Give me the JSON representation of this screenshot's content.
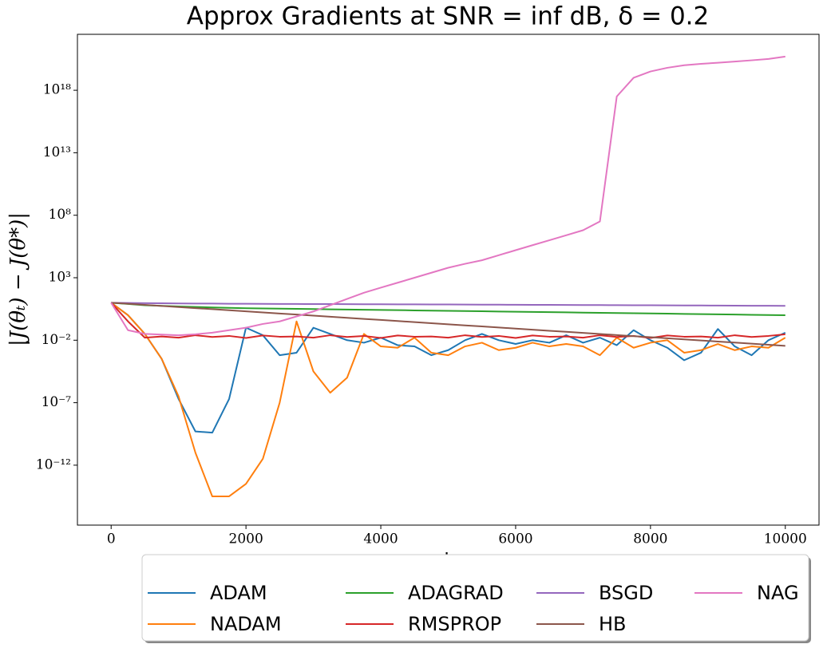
{
  "chart_data": {
    "type": "line",
    "title": "Approx Gradients at SNR = inf dB, δ = 0.2",
    "x_label": "t",
    "y_label": "|J(θₜ) − J(θ*)|",
    "log_y": true,
    "grid": false,
    "legend_loc": "below",
    "legend_columns": 4,
    "xlim": [
      -500,
      10500
    ],
    "xticks": [
      0,
      2000,
      4000,
      6000,
      8000,
      10000
    ],
    "ylim": [
      1.6e-17,
      3e+22
    ],
    "yticks": [
      {
        "value": 1e-12,
        "label": "10⁻¹²"
      },
      {
        "value": 1e-07,
        "label": "10⁻⁷"
      },
      {
        "value": 0.01,
        "label": "10⁻²"
      },
      {
        "value": 1000.0,
        "label": "10³"
      },
      {
        "value": 100000000.0,
        "label": "10⁸"
      },
      {
        "value": 10000000000000.0,
        "label": "10¹³"
      },
      {
        "value": 1e+18,
        "label": "10¹⁸"
      }
    ],
    "x": [
      0,
      250,
      500,
      750,
      1000,
      1250,
      1500,
      1750,
      2000,
      2250,
      2500,
      2750,
      3000,
      3250,
      3500,
      3750,
      4000,
      4250,
      4500,
      4750,
      5000,
      5250,
      5500,
      5750,
      6000,
      6250,
      6500,
      6750,
      7000,
      7250,
      7500,
      7750,
      8000,
      8250,
      8500,
      8750,
      9000,
      9250,
      9500,
      9750,
      10000
    ],
    "series": [
      {
        "name": "ADAM",
        "color": "#1f77b4",
        "values": [
          10,
          1,
          0.032,
          0.00032,
          2e-07,
          5e-10,
          4e-10,
          2e-07,
          0.1,
          0.025,
          0.00063,
          0.001,
          0.1,
          0.032,
          0.01,
          0.0063,
          0.016,
          0.004,
          0.0032,
          0.00063,
          0.0016,
          0.01,
          0.032,
          0.01,
          0.005,
          0.01,
          0.0063,
          0.025,
          0.0063,
          0.016,
          0.004,
          0.063,
          0.01,
          0.0025,
          0.00025,
          0.001,
          0.079,
          0.0032,
          0.00063,
          0.01,
          0.04
        ]
      },
      {
        "name": "NADAM",
        "color": "#ff7f0e",
        "values": [
          10,
          1,
          0.032,
          0.00032,
          3.2e-07,
          1e-11,
          3.2e-15,
          3.2e-15,
          3.2e-14,
          3.2e-12,
          1e-07,
          0.32,
          3.2e-05,
          6.3e-07,
          1e-05,
          0.032,
          0.0032,
          0.0025,
          0.016,
          0.001,
          0.00063,
          0.0032,
          0.0063,
          0.0016,
          0.0025,
          0.0063,
          0.0032,
          0.005,
          0.0032,
          0.00063,
          0.016,
          0.0025,
          0.0063,
          0.01,
          0.001,
          0.0016,
          0.005,
          0.0016,
          0.0032,
          0.0025,
          0.016
        ]
      },
      {
        "name": "ADAGRAD",
        "color": "#2ca02c",
        "values": [
          10,
          7.9,
          6.3,
          5.6,
          5,
          4.6,
          4.2,
          3.9,
          3.6,
          3.49,
          3.35,
          3.22,
          3.09,
          2.97,
          2.85,
          2.74,
          2.63,
          2.53,
          2.43,
          2.33,
          2.24,
          2.15,
          2.07,
          1.98,
          1.91,
          1.83,
          1.76,
          1.69,
          1.62,
          1.56,
          1.5,
          1.44,
          1.38,
          1.33,
          1.27,
          1.22,
          1.17,
          1.13,
          1.08,
          1.04,
          1.0
        ]
      },
      {
        "name": "RMSPROP",
        "color": "#d62728",
        "values": [
          10,
          0.32,
          0.016,
          0.02,
          0.016,
          0.025,
          0.018,
          0.022,
          0.015,
          0.024,
          0.019,
          0.02,
          0.016,
          0.025,
          0.018,
          0.022,
          0.015,
          0.024,
          0.019,
          0.02,
          0.016,
          0.025,
          0.018,
          0.022,
          0.015,
          0.024,
          0.019,
          0.02,
          0.016,
          0.025,
          0.018,
          0.022,
          0.015,
          0.024,
          0.019,
          0.02,
          0.016,
          0.025,
          0.018,
          0.022,
          0.03
        ]
      },
      {
        "name": "BSGD",
        "color": "#9467bd",
        "values": [
          10,
          9.6,
          9.3,
          9.0,
          8.8,
          8.6,
          8.5,
          8.3,
          8.2,
          8.1,
          8.0,
          7.92,
          7.84,
          7.76,
          7.68,
          7.6,
          7.52,
          7.44,
          7.36,
          7.28,
          7.2,
          7.12,
          7.04,
          6.96,
          6.88,
          6.8,
          6.72,
          6.64,
          6.56,
          6.48,
          6.4,
          6.32,
          6.24,
          6.16,
          6.08,
          6.0,
          5.92,
          5.84,
          5.76,
          5.68,
          5.6
        ]
      },
      {
        "name": "HB",
        "color": "#8c564b",
        "values": [
          10,
          8.2,
          6.72,
          5.51,
          4.52,
          3.7,
          3.04,
          2.49,
          2.04,
          1.67,
          1.37,
          1.13,
          0.92,
          0.756,
          0.62,
          0.508,
          0.417,
          0.342,
          0.28,
          0.23,
          0.188,
          0.154,
          0.127,
          0.104,
          0.0851,
          0.0698,
          0.0572,
          0.0469,
          0.0385,
          0.0315,
          0.0259,
          0.0212,
          0.0174,
          0.0142,
          0.0117,
          0.00958,
          0.00785,
          0.00644,
          0.00528,
          0.00433,
          0.00355
        ]
      },
      {
        "name": "NAG",
        "color": "#e377c2",
        "values": [
          10,
          0.063,
          0.032,
          0.028,
          0.025,
          0.03,
          0.04,
          0.063,
          0.1,
          0.2,
          0.32,
          0.8,
          2,
          6.3,
          20,
          63,
          160,
          400,
          1000,
          2500,
          6300,
          13000,
          25000,
          63000,
          160000,
          400000,
          1000000,
          2500000,
          6300000,
          32000000,
          3.2e+17,
          1e+19,
          3.2e+19,
          6.3e+19,
          1e+20,
          1.3e+20,
          1.6e+20,
          2e+20,
          2.5e+20,
          3.2e+20,
          5e+20
        ]
      }
    ]
  }
}
